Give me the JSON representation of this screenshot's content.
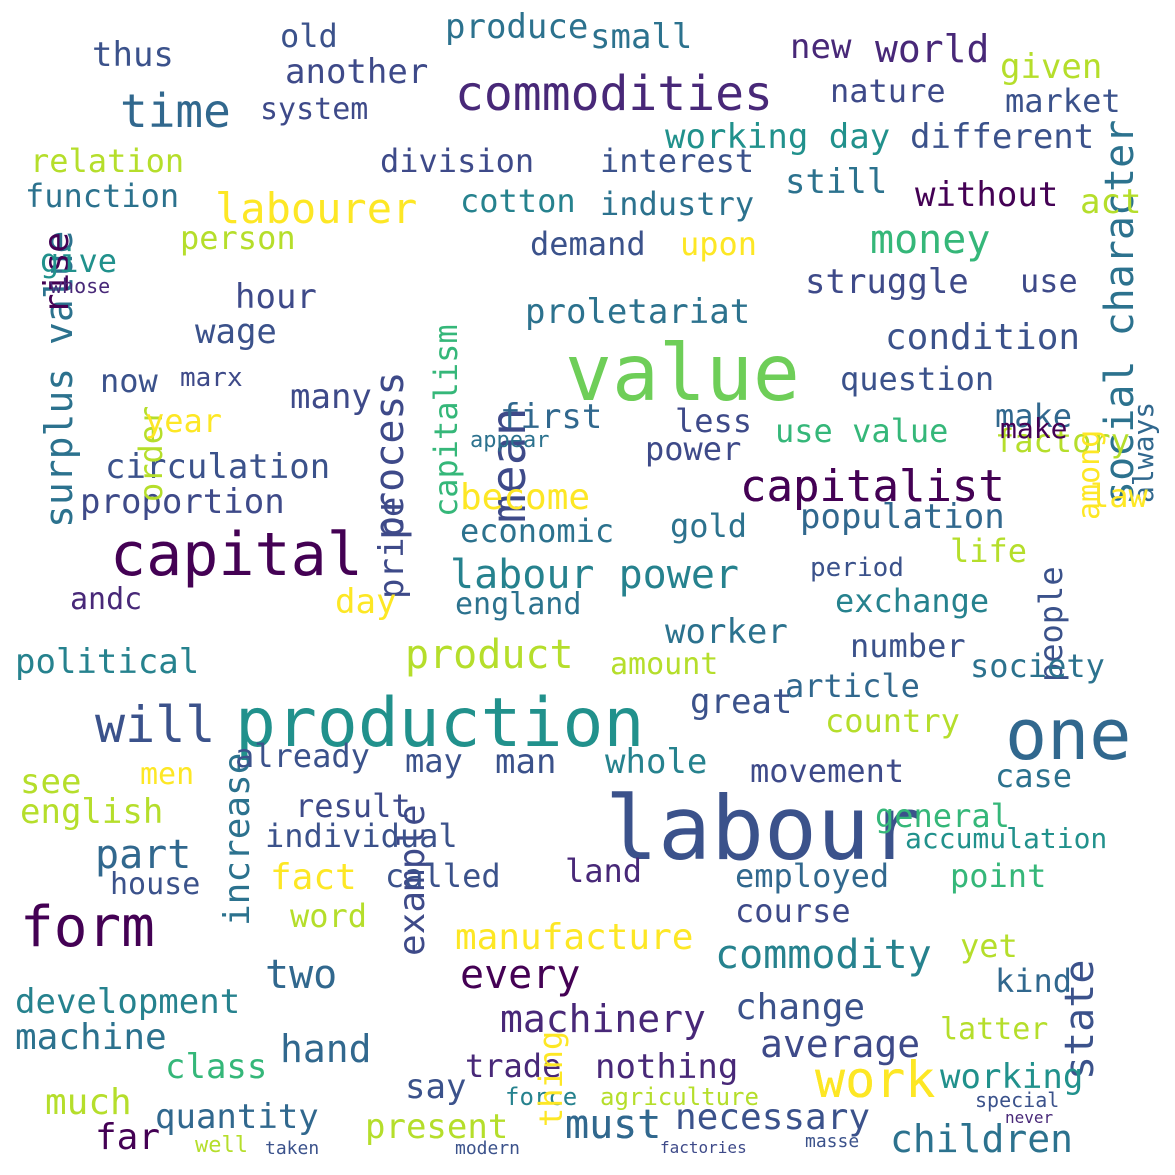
{
  "words": [
    "labour",
    "value",
    "production",
    "capital",
    "one",
    "form",
    "work",
    "will",
    "commodities",
    "capitalist",
    "labourer",
    "mean",
    "time",
    "commodity",
    "surplus value",
    "money",
    "labour power",
    "product",
    "process",
    "social character",
    "manufacture",
    "machinery",
    "children",
    "state",
    "world",
    "machine",
    "development",
    "quantity",
    "class",
    "present",
    "necessary",
    "hand",
    "working",
    "must",
    "example",
    "every",
    "nothing",
    "fact",
    "political",
    "increase",
    "two",
    "part",
    "english",
    "house",
    "individual",
    "word",
    "result",
    "average",
    "change",
    "condition",
    "circulation",
    "proportion",
    "economic",
    "become",
    "proletariat",
    "capitalism",
    "price",
    "wage",
    "system",
    "produce",
    "working day",
    "different",
    "without",
    "small",
    "another",
    "old",
    "struggle",
    "trade",
    "factory",
    "use value",
    "population",
    "market",
    "given",
    "nature",
    "industry",
    "interest",
    "division",
    "cotton",
    "relation",
    "function",
    "person",
    "hour",
    "order",
    "rise",
    "thus",
    "new",
    "still",
    "act",
    "demand",
    "upon",
    "use",
    "give",
    "whose",
    "marx",
    "now",
    "year",
    "day",
    "andc",
    "many",
    "first",
    "less",
    "power",
    "make",
    "question",
    "among",
    "always",
    "people",
    "law",
    "life",
    "gold",
    "labour",
    "capitalism",
    "make",
    "appear",
    "gold",
    "period",
    "exchange",
    "england",
    "worker",
    "number",
    "society",
    "article",
    "amount",
    "great",
    "already",
    "may",
    "man",
    "whole",
    "country",
    "movement",
    "case",
    "general",
    "see",
    "men",
    "much",
    "far",
    "say",
    "force",
    "agriculture",
    "necessary",
    "employed",
    "called",
    "land",
    "thing",
    "course",
    "point",
    "yet",
    "kind",
    "latter",
    "accumulation",
    "well",
    "taken",
    "modern",
    "factories",
    "must",
    "never",
    "special",
    "work",
    "masse",
    "capitalist"
  ]
}
